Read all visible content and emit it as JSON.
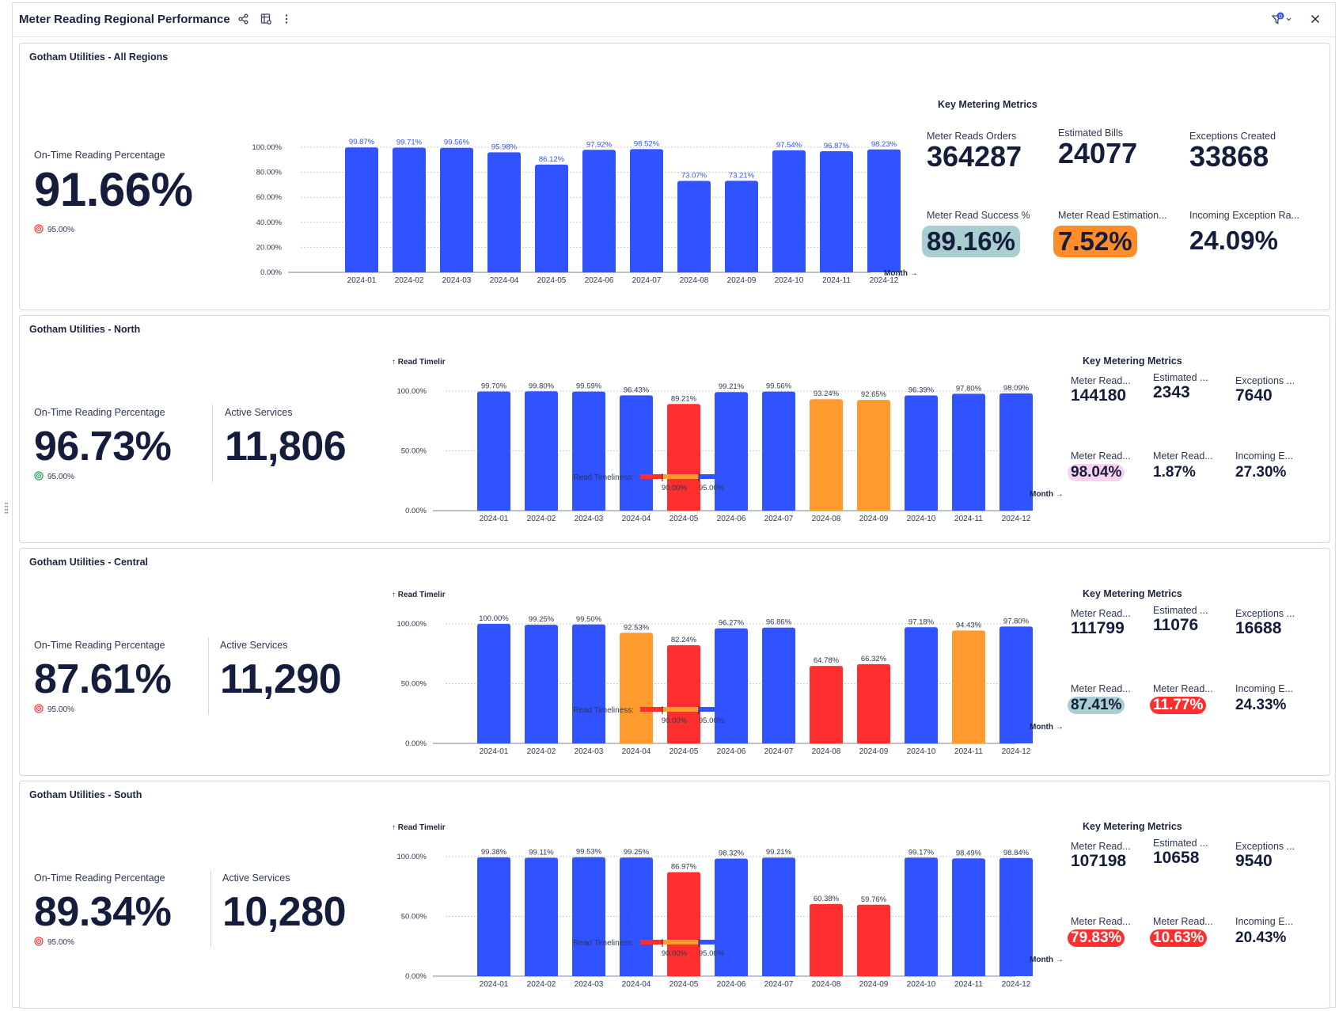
{
  "dashboard": {
    "title": "Meter Reading Regional Performance",
    "filter_count": "0"
  },
  "colors": {
    "blue": "#3052ff",
    "red": "#ff2e2e",
    "orange": "#ff9a2e"
  },
  "panels": [
    {
      "title": "Gotham Utilities - All Regions",
      "kpi": {
        "label": "On-Time Reading Percentage",
        "value": "91.66%",
        "target": "95.00%",
        "target_status": "below"
      },
      "metrics": {
        "title": "Key Metering Metrics",
        "items": [
          {
            "label": "Meter Reads Orders",
            "value": "364287"
          },
          {
            "label": "Estimated Bills",
            "value": "24077"
          },
          {
            "label": "Exceptions Created",
            "value": "33868"
          },
          {
            "label": "Meter Read Success %",
            "value": "89.16%",
            "highlight": "#a9cdd0"
          },
          {
            "label": "Meter Read Estimation...",
            "value": "7.52%",
            "highlight": "#ff8c2a"
          },
          {
            "label": "Incoming Exception Ra...",
            "value": "24.09%"
          }
        ]
      }
    },
    {
      "title": "Gotham Utilities - North",
      "kpi": {
        "label": "On-Time Reading Percentage",
        "value": "96.73%",
        "target": "95.00%",
        "target_status": "above"
      },
      "active": {
        "label": "Active Services",
        "value": "11,806"
      },
      "metrics": {
        "title": "Key Metering Metrics",
        "items": [
          {
            "label": "Meter Read...",
            "value": "144180"
          },
          {
            "label": "Estimated ...",
            "value": "2343"
          },
          {
            "label": "Exceptions ...",
            "value": "7640"
          },
          {
            "label": "Meter Read...",
            "value": "98.04%",
            "highlight": "#f7d3f0"
          },
          {
            "label": "Meter Read...",
            "value": "1.87%"
          },
          {
            "label": "Incoming E...",
            "value": "27.30%"
          }
        ]
      }
    },
    {
      "title": "Gotham Utilities - Central",
      "kpi": {
        "label": "On-Time Reading Percentage",
        "value": "87.61%",
        "target": "95.00%",
        "target_status": "below"
      },
      "active": {
        "label": "Active Services",
        "value": "11,290"
      },
      "metrics": {
        "title": "Key Metering Metrics",
        "items": [
          {
            "label": "Meter Read...",
            "value": "111799"
          },
          {
            "label": "Estimated ...",
            "value": "11076"
          },
          {
            "label": "Exceptions ...",
            "value": "16688"
          },
          {
            "label": "Meter Read...",
            "value": "87.41%",
            "highlight": "#a9cdd0"
          },
          {
            "label": "Meter Read...",
            "value": "11.77%",
            "highlight": "#ff2e2e",
            "light_text": true
          },
          {
            "label": "Incoming E...",
            "value": "24.33%"
          }
        ]
      }
    },
    {
      "title": "Gotham Utilities - South",
      "kpi": {
        "label": "On-Time Reading Percentage",
        "value": "89.34%",
        "target": "95.00%",
        "target_status": "below"
      },
      "active": {
        "label": "Active Services",
        "value": "10,280"
      },
      "metrics": {
        "title": "Key Metering Metrics",
        "items": [
          {
            "label": "Meter Read...",
            "value": "107198"
          },
          {
            "label": "Estimated ...",
            "value": "10658"
          },
          {
            "label": "Exceptions ...",
            "value": "9540"
          },
          {
            "label": "Meter Read...",
            "value": "79.83%",
            "highlight": "#ff2e2e",
            "light_text": true
          },
          {
            "label": "Meter Read...",
            "value": "10.63%",
            "highlight": "#ff2e2e",
            "light_text": true
          },
          {
            "label": "Incoming E...",
            "value": "20.43%"
          }
        ]
      }
    }
  ],
  "chart_data": [
    {
      "type": "bar",
      "panel": "Gotham Utilities - All Regions",
      "categories": [
        "2024-01",
        "2024-02",
        "2024-03",
        "2024-04",
        "2024-05",
        "2024-06",
        "2024-07",
        "2024-08",
        "2024-09",
        "2024-10",
        "2024-11",
        "2024-12"
      ],
      "values": [
        99.87,
        99.71,
        99.56,
        95.98,
        86.12,
        97.92,
        98.52,
        73.07,
        73.21,
        97.54,
        96.87,
        98.23
      ],
      "data_labels": [
        "99.87%",
        "99.71%",
        "99.56%",
        "95.98%",
        "86.12%",
        "97.92%",
        "98.52%",
        "73.07%",
        "73.21%",
        "97.54%",
        "96.87%",
        "98.23%"
      ],
      "colors": [
        "blue",
        "blue",
        "blue",
        "blue",
        "blue",
        "blue",
        "blue",
        "blue",
        "blue",
        "blue",
        "blue",
        "blue"
      ],
      "yticks": [
        "0.00%",
        "20.00%",
        "40.00%",
        "60.00%",
        "80.00%",
        "100.00%"
      ],
      "ylim": [
        0,
        100
      ],
      "xlabel": "Month",
      "ylabel": "",
      "grid": true
    },
    {
      "type": "bar",
      "panel": "Gotham Utilities - North",
      "categories": [
        "2024-01",
        "2024-02",
        "2024-03",
        "2024-04",
        "2024-05",
        "2024-06",
        "2024-07",
        "2024-08",
        "2024-09",
        "2024-10",
        "2024-11",
        "2024-12"
      ],
      "values": [
        99.7,
        99.8,
        99.59,
        96.43,
        89.21,
        99.21,
        99.56,
        93.24,
        92.65,
        96.39,
        97.8,
        98.09
      ],
      "data_labels": [
        "99.70%",
        "99.80%",
        "99.59%",
        "96.43%",
        "89.21%",
        "99.21%",
        "99.56%",
        "93.24%",
        "92.65%",
        "96.39%",
        "97.80%",
        "98.09%"
      ],
      "colors": [
        "blue",
        "blue",
        "blue",
        "blue",
        "red",
        "blue",
        "blue",
        "orange",
        "orange",
        "blue",
        "blue",
        "blue"
      ],
      "yticks": [
        "0.00%",
        "50.00%",
        "100.00%"
      ],
      "ylim": [
        0,
        100
      ],
      "xlabel": "Month",
      "ylabel": "Read Timelir",
      "legend": {
        "label": "Read Timeliness:",
        "thresholds": [
          "90.00%",
          "95.00%"
        ]
      }
    },
    {
      "type": "bar",
      "panel": "Gotham Utilities - Central",
      "categories": [
        "2024-01",
        "2024-02",
        "2024-03",
        "2024-04",
        "2024-05",
        "2024-06",
        "2024-07",
        "2024-08",
        "2024-09",
        "2024-10",
        "2024-11",
        "2024-12"
      ],
      "values": [
        100.0,
        99.25,
        99.5,
        92.53,
        82.24,
        96.27,
        96.86,
        64.78,
        66.32,
        97.18,
        94.43,
        97.8
      ],
      "data_labels": [
        "100.00%",
        "99.25%",
        "99.50%",
        "92.53%",
        "82.24%",
        "96.27%",
        "96.86%",
        "64.78%",
        "66.32%",
        "97.18%",
        "94.43%",
        "97.80%"
      ],
      "colors": [
        "blue",
        "blue",
        "blue",
        "orange",
        "red",
        "blue",
        "blue",
        "red",
        "red",
        "blue",
        "orange",
        "blue"
      ],
      "yticks": [
        "0.00%",
        "50.00%",
        "100.00%"
      ],
      "ylim": [
        0,
        100
      ],
      "xlabel": "Month",
      "ylabel": "Read Timelir",
      "legend": {
        "label": "Read Timeliness:",
        "thresholds": [
          "90.00%",
          "95.00%"
        ]
      }
    },
    {
      "type": "bar",
      "panel": "Gotham Utilities - South",
      "categories": [
        "2024-01",
        "2024-02",
        "2024-03",
        "2024-04",
        "2024-05",
        "2024-06",
        "2024-07",
        "2024-08",
        "2024-09",
        "2024-10",
        "2024-11",
        "2024-12"
      ],
      "values": [
        99.38,
        99.11,
        99.53,
        99.25,
        86.97,
        98.32,
        99.21,
        60.38,
        59.76,
        99.17,
        98.49,
        98.84
      ],
      "data_labels": [
        "99.38%",
        "99.11%",
        "99.53%",
        "99.25%",
        "86.97%",
        "98.32%",
        "99.21%",
        "60.38%",
        "59.76%",
        "99.17%",
        "98.49%",
        "98.84%"
      ],
      "colors": [
        "blue",
        "blue",
        "blue",
        "blue",
        "red",
        "blue",
        "blue",
        "red",
        "red",
        "blue",
        "blue",
        "blue"
      ],
      "yticks": [
        "0.00%",
        "50.00%",
        "100.00%"
      ],
      "ylim": [
        0,
        100
      ],
      "xlabel": "Month",
      "ylabel": "Read Timelir",
      "legend": {
        "label": "Read Timeliness:",
        "thresholds": [
          "90.00%",
          "95.00%"
        ]
      }
    }
  ]
}
